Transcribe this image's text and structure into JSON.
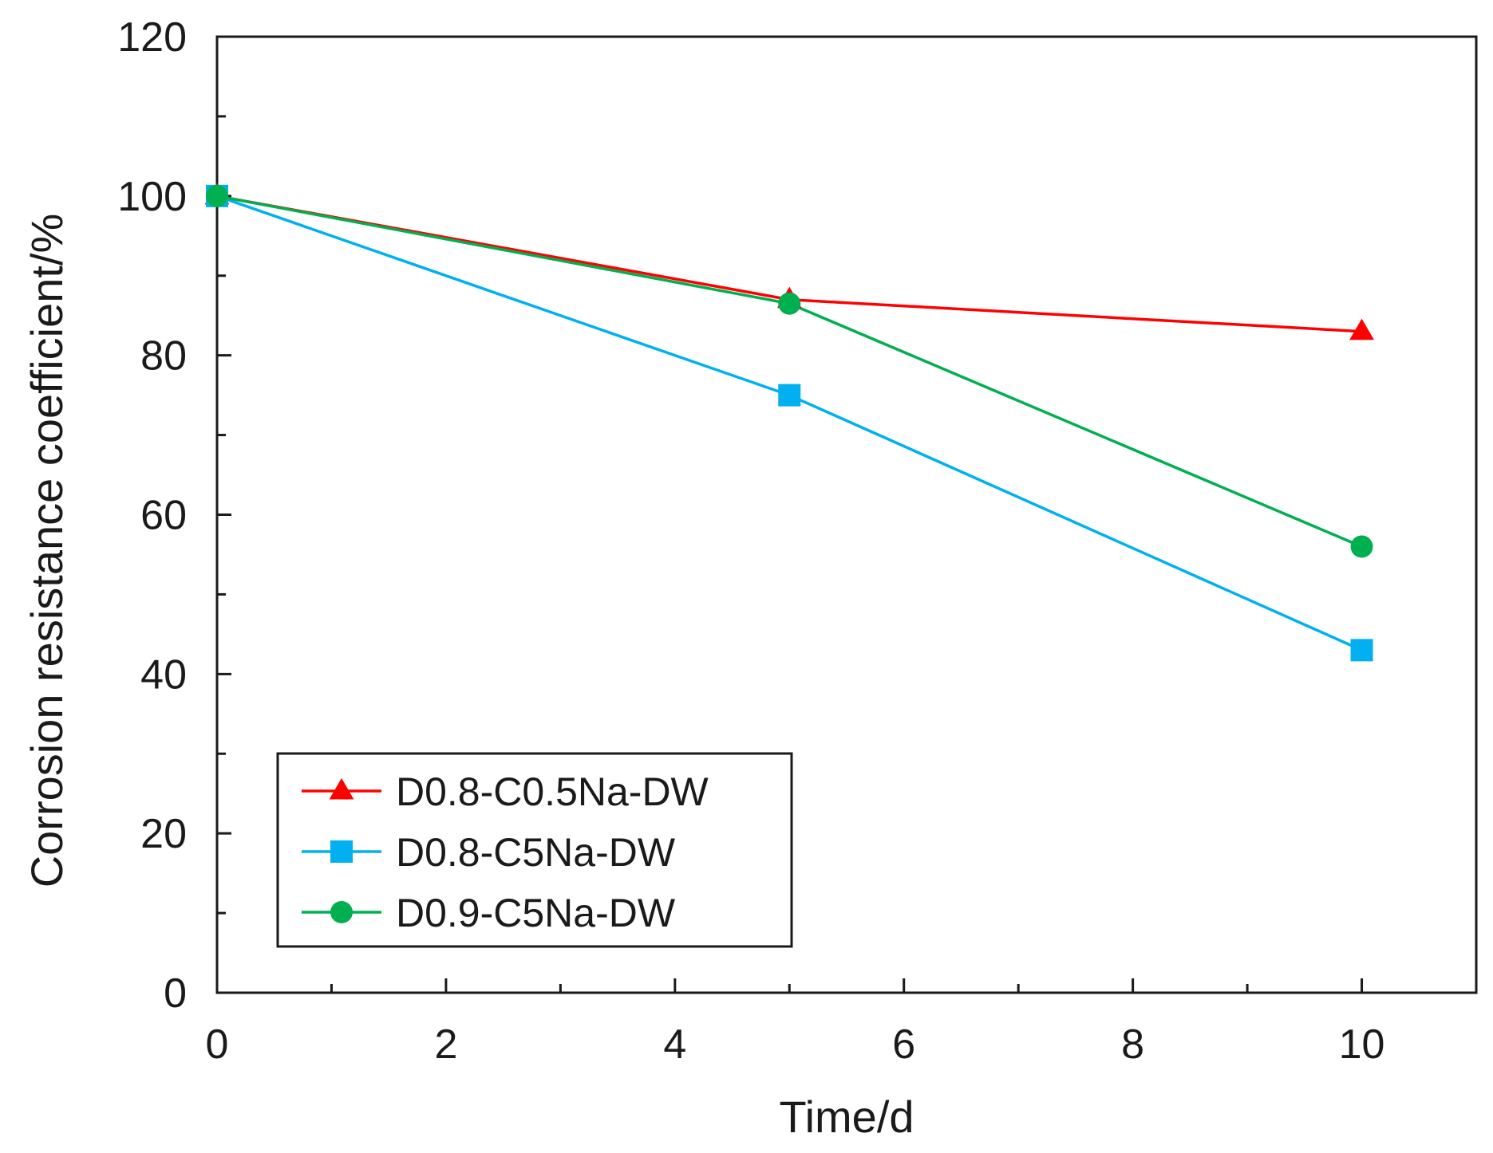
{
  "chart_data": {
    "type": "line",
    "title": "",
    "xlabel": "Time/d",
    "ylabel": "Corrosion resistance coefficient/%",
    "xlim": [
      0,
      11
    ],
    "ylim": [
      0,
      120
    ],
    "x_ticks": [
      0,
      2,
      4,
      6,
      8,
      10
    ],
    "x_tick_labels": [
      "0",
      "2",
      "4",
      "6",
      "8",
      "10"
    ],
    "x_minor_ticks": [
      1,
      3,
      5,
      7,
      9,
      11
    ],
    "y_ticks": [
      0,
      20,
      40,
      60,
      80,
      100,
      120
    ],
    "y_tick_labels": [
      "0",
      "20",
      "40",
      "60",
      "80",
      "100",
      "120"
    ],
    "y_minor_ticks": [
      10,
      30,
      50,
      70,
      90,
      110
    ],
    "grid": false,
    "legend_position": "bottom-left",
    "series": [
      {
        "name": "D0.8-C0.5Na-DW",
        "color": "#ff0000",
        "marker": "triangle",
        "x": [
          0,
          5,
          10
        ],
        "y": [
          100,
          87,
          83
        ]
      },
      {
        "name": "D0.8-C5Na-DW",
        "color": "#00b0f0",
        "marker": "square",
        "x": [
          0,
          5,
          10
        ],
        "y": [
          100,
          75,
          43
        ]
      },
      {
        "name": "D0.9-C5Na-DW",
        "color": "#00b050",
        "marker": "circle",
        "x": [
          0,
          5,
          10
        ],
        "y": [
          100,
          86.5,
          56
        ]
      }
    ]
  }
}
